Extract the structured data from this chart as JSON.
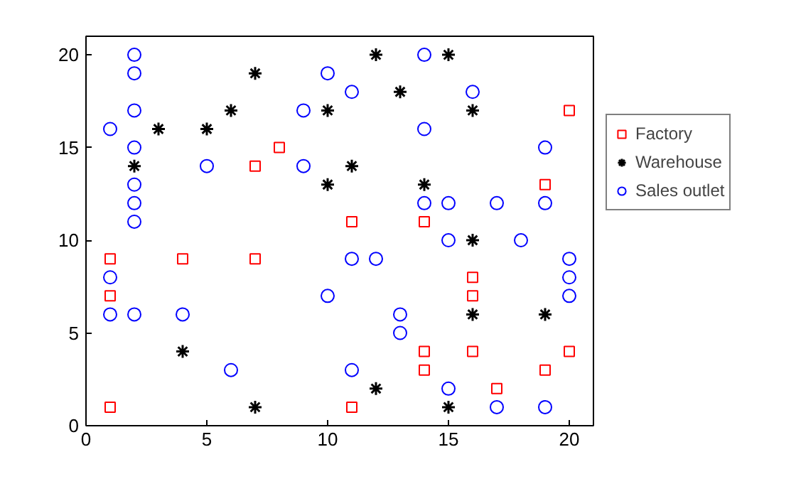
{
  "chart_data": {
    "type": "scatter",
    "xlim": [
      0,
      21
    ],
    "ylim": [
      0,
      21
    ],
    "xticks": [
      0,
      5,
      10,
      15,
      20
    ],
    "yticks": [
      0,
      5,
      10,
      15,
      20
    ],
    "grid": false,
    "legend": "right",
    "series": [
      {
        "name": "Factory",
        "color": "#ff0000",
        "marker": "square",
        "x": [
          20,
          8,
          7,
          19,
          11,
          14,
          1,
          4,
          7,
          16,
          1,
          16,
          14,
          16,
          20,
          14,
          19,
          17,
          1,
          11
        ],
        "values": [
          17,
          15,
          14,
          13,
          11,
          11,
          9,
          9,
          9,
          8,
          7,
          7,
          4,
          4,
          4,
          3,
          3,
          2,
          1,
          1
        ]
      },
      {
        "name": "Warehouse",
        "color": "#000000",
        "marker": "cross",
        "x": [
          12,
          15,
          7,
          13,
          6,
          10,
          16,
          3,
          5,
          2,
          11,
          10,
          14,
          16,
          16,
          19,
          4,
          12,
          7,
          15
        ],
        "values": [
          20,
          20,
          19,
          18,
          17,
          17,
          17,
          16,
          16,
          14,
          14,
          13,
          13,
          10,
          6,
          6,
          4,
          2,
          1,
          1
        ]
      },
      {
        "name": "Sales outlet",
        "color": "#0000ff",
        "marker": "circle",
        "x": [
          2,
          14,
          2,
          10,
          11,
          16,
          2,
          9,
          1,
          14,
          2,
          19,
          5,
          9,
          2,
          2,
          14,
          15,
          17,
          19,
          2,
          15,
          18,
          11,
          12,
          20,
          1,
          20,
          10,
          20,
          1,
          2,
          4,
          13,
          13,
          6,
          11,
          15,
          17,
          19
        ],
        "values": [
          20,
          20,
          19,
          19,
          18,
          18,
          17,
          17,
          16,
          16,
          15,
          15,
          14,
          14,
          13,
          12,
          12,
          12,
          12,
          12,
          11,
          10,
          10,
          9,
          9,
          9,
          8,
          8,
          7,
          7,
          6,
          6,
          6,
          6,
          5,
          3,
          3,
          2,
          1,
          1
        ]
      }
    ]
  }
}
